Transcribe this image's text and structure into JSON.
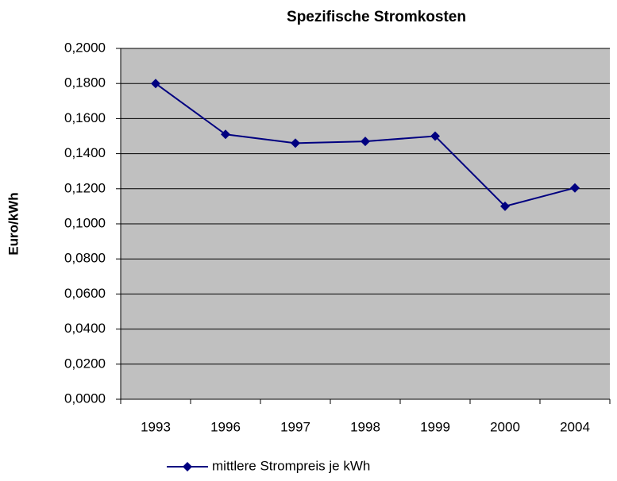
{
  "chart_data": {
    "type": "line",
    "title": "Spezifische Stromkosten",
    "y_label": "Euro/kWh",
    "categories": [
      "1993",
      "1996",
      "1997",
      "1998",
      "1999",
      "2000",
      "2004"
    ],
    "series": [
      {
        "name": "mittlere Strompreis je kWh",
        "color": "#000080",
        "values": [
          0.18,
          0.151,
          0.146,
          0.147,
          0.15,
          0.11,
          0.1205
        ]
      }
    ],
    "ylim": [
      0,
      0.2
    ],
    "yticks": [
      {
        "value": 0,
        "label": "0,0000"
      },
      {
        "value": 0.02,
        "label": "0,0200"
      },
      {
        "value": 0.04,
        "label": "0,0400"
      },
      {
        "value": 0.06,
        "label": "0,0600"
      },
      {
        "value": 0.08,
        "label": "0,0800"
      },
      {
        "value": 0.1,
        "label": "0,1000"
      },
      {
        "value": 0.12,
        "label": "0,1200"
      },
      {
        "value": 0.14,
        "label": "0,1400"
      },
      {
        "value": 0.16,
        "label": "0,1600"
      },
      {
        "value": 0.18,
        "label": "0,1800"
      },
      {
        "value": 0.2,
        "label": "0,2000"
      }
    ],
    "grid": true,
    "legend": "bottom",
    "plot_background": "#c0c0c0"
  }
}
